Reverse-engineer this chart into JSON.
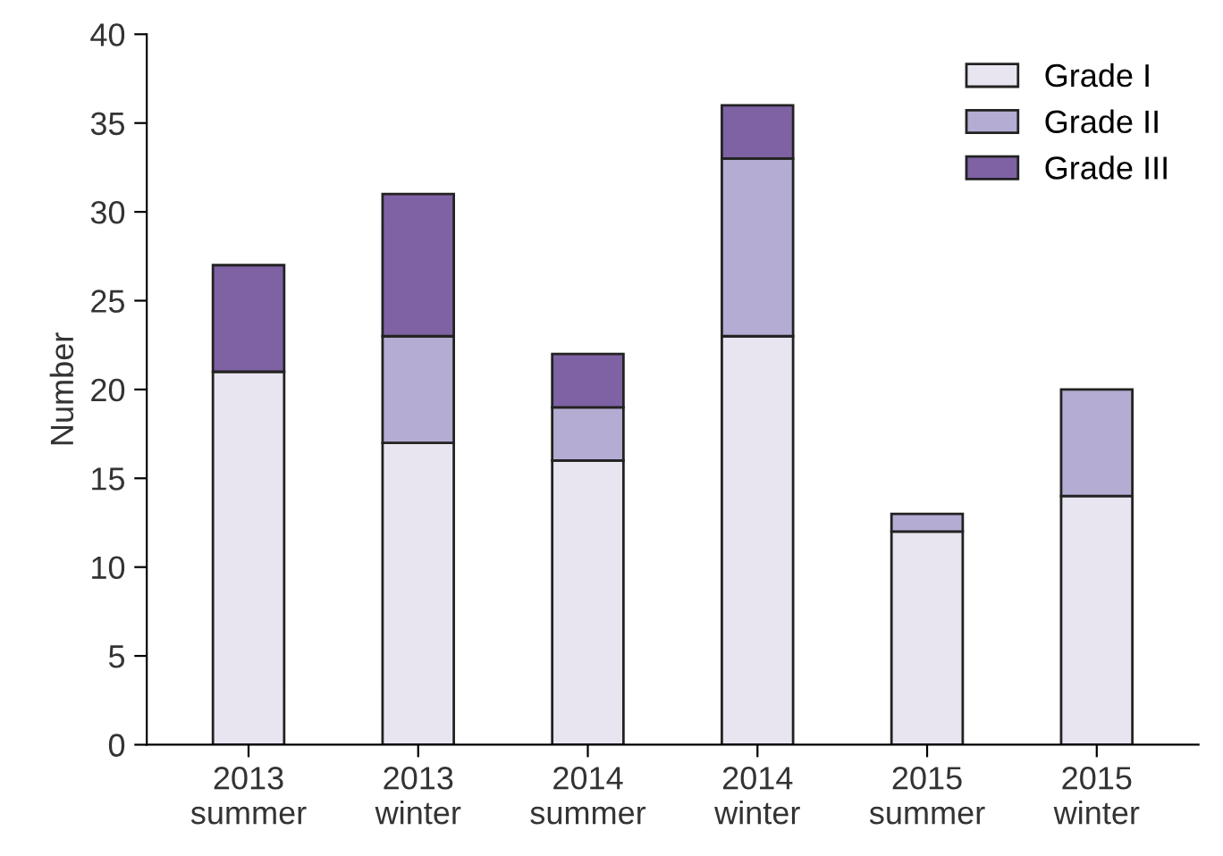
{
  "chart_data": {
    "type": "bar",
    "stacked": true,
    "ylabel": "Number",
    "categories": [
      "2013\nsummer",
      "2013\nwinter",
      "2014\nsummer",
      "2014\nwinter",
      "2015\nsummer",
      "2015\nwinter"
    ],
    "series": [
      {
        "name": "Grade I",
        "color": "#e8e4f0",
        "values": [
          21,
          17,
          16,
          23,
          12,
          14
        ]
      },
      {
        "name": "Grade II",
        "color": "#b4acd2",
        "values": [
          null,
          6,
          3,
          10,
          1,
          6
        ]
      },
      {
        "name": "Grade III",
        "color": "#7e62a4",
        "values": [
          6,
          8,
          3,
          3,
          null,
          null
        ]
      }
    ],
    "ylim": [
      0,
      40
    ],
    "yticks": [
      0,
      5,
      10,
      15,
      20,
      25,
      30,
      35,
      40
    ],
    "grid": false,
    "legend": "top right"
  }
}
